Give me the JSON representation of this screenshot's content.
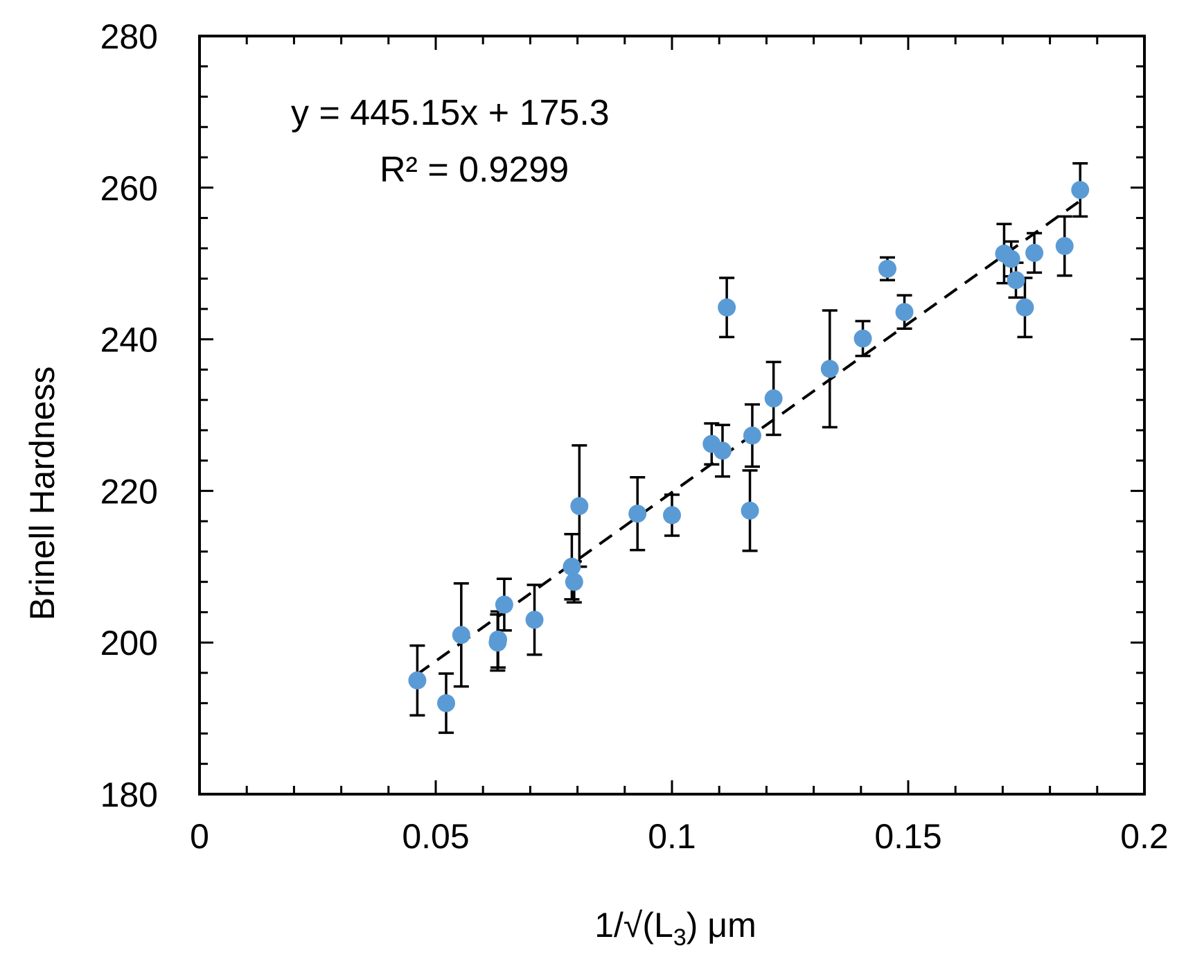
{
  "chart_data": {
    "type": "scatter",
    "title": "",
    "xlabel_parts": {
      "prefix": "1/√(L",
      "subscript": "3",
      "suffix": ") μm"
    },
    "ylabel": "Brinell Hardness",
    "xlim": [
      0,
      0.2
    ],
    "ylim": [
      180,
      280
    ],
    "x_ticks": [
      0,
      0.05,
      0.1,
      0.15,
      0.2
    ],
    "x_tick_labels": [
      "0",
      "0.05",
      "0.1",
      "0.15",
      "0.2"
    ],
    "x_minor_step": 0.01,
    "y_ticks": [
      180,
      200,
      220,
      240,
      260,
      280
    ],
    "y_tick_labels": [
      "180",
      "200",
      "220",
      "240",
      "260",
      "280"
    ],
    "y_minor_step": 4,
    "marker_color": "#5b9bd5",
    "trendline": {
      "equation_label": "y = 445.15x + 175.3",
      "r2_label": "R² = 0.9299",
      "slope": 445.15,
      "intercept": 175.3,
      "x_range": [
        0.046,
        0.186
      ],
      "style": "dashed"
    },
    "points": [
      {
        "x": 0.0461,
        "y": 195.0,
        "err": 4.6
      },
      {
        "x": 0.0522,
        "y": 192.0,
        "err": 3.9
      },
      {
        "x": 0.0554,
        "y": 201.0,
        "err": 6.8
      },
      {
        "x": 0.0631,
        "y": 200.0,
        "err": 3.7
      },
      {
        "x": 0.0632,
        "y": 200.4,
        "err": 3.7
      },
      {
        "x": 0.0645,
        "y": 205.0,
        "err": 3.4
      },
      {
        "x": 0.0709,
        "y": 203.0,
        "err": 4.6
      },
      {
        "x": 0.0788,
        "y": 210.0,
        "err": 4.3
      },
      {
        "x": 0.0793,
        "y": 208.0,
        "err": 2.7
      },
      {
        "x": 0.0804,
        "y": 218.0,
        "err": 8.0
      },
      {
        "x": 0.0927,
        "y": 217.0,
        "err": 4.8
      },
      {
        "x": 0.1,
        "y": 216.8,
        "err": 2.7
      },
      {
        "x": 0.1084,
        "y": 226.2,
        "err": 2.7
      },
      {
        "x": 0.1107,
        "y": 225.3,
        "err": 3.4
      },
      {
        "x": 0.1116,
        "y": 244.2,
        "err": 3.9
      },
      {
        "x": 0.1165,
        "y": 217.4,
        "err": 5.3
      },
      {
        "x": 0.117,
        "y": 227.3,
        "err": 4.1
      },
      {
        "x": 0.1215,
        "y": 232.2,
        "err": 4.8
      },
      {
        "x": 0.1334,
        "y": 236.1,
        "err": 7.7
      },
      {
        "x": 0.1404,
        "y": 240.1,
        "err": 2.3
      },
      {
        "x": 0.1456,
        "y": 249.3,
        "err": 1.5
      },
      {
        "x": 0.1492,
        "y": 243.6,
        "err": 2.2
      },
      {
        "x": 0.1703,
        "y": 251.3,
        "err": 3.9
      },
      {
        "x": 0.1718,
        "y": 250.6,
        "err": 2.3
      },
      {
        "x": 0.1728,
        "y": 247.8,
        "err": 2.3
      },
      {
        "x": 0.1747,
        "y": 244.2,
        "err": 3.9
      },
      {
        "x": 0.1767,
        "y": 251.4,
        "err": 2.6
      },
      {
        "x": 0.1831,
        "y": 252.3,
        "err": 3.9
      },
      {
        "x": 0.1864,
        "y": 259.7,
        "err": 3.5
      }
    ]
  }
}
